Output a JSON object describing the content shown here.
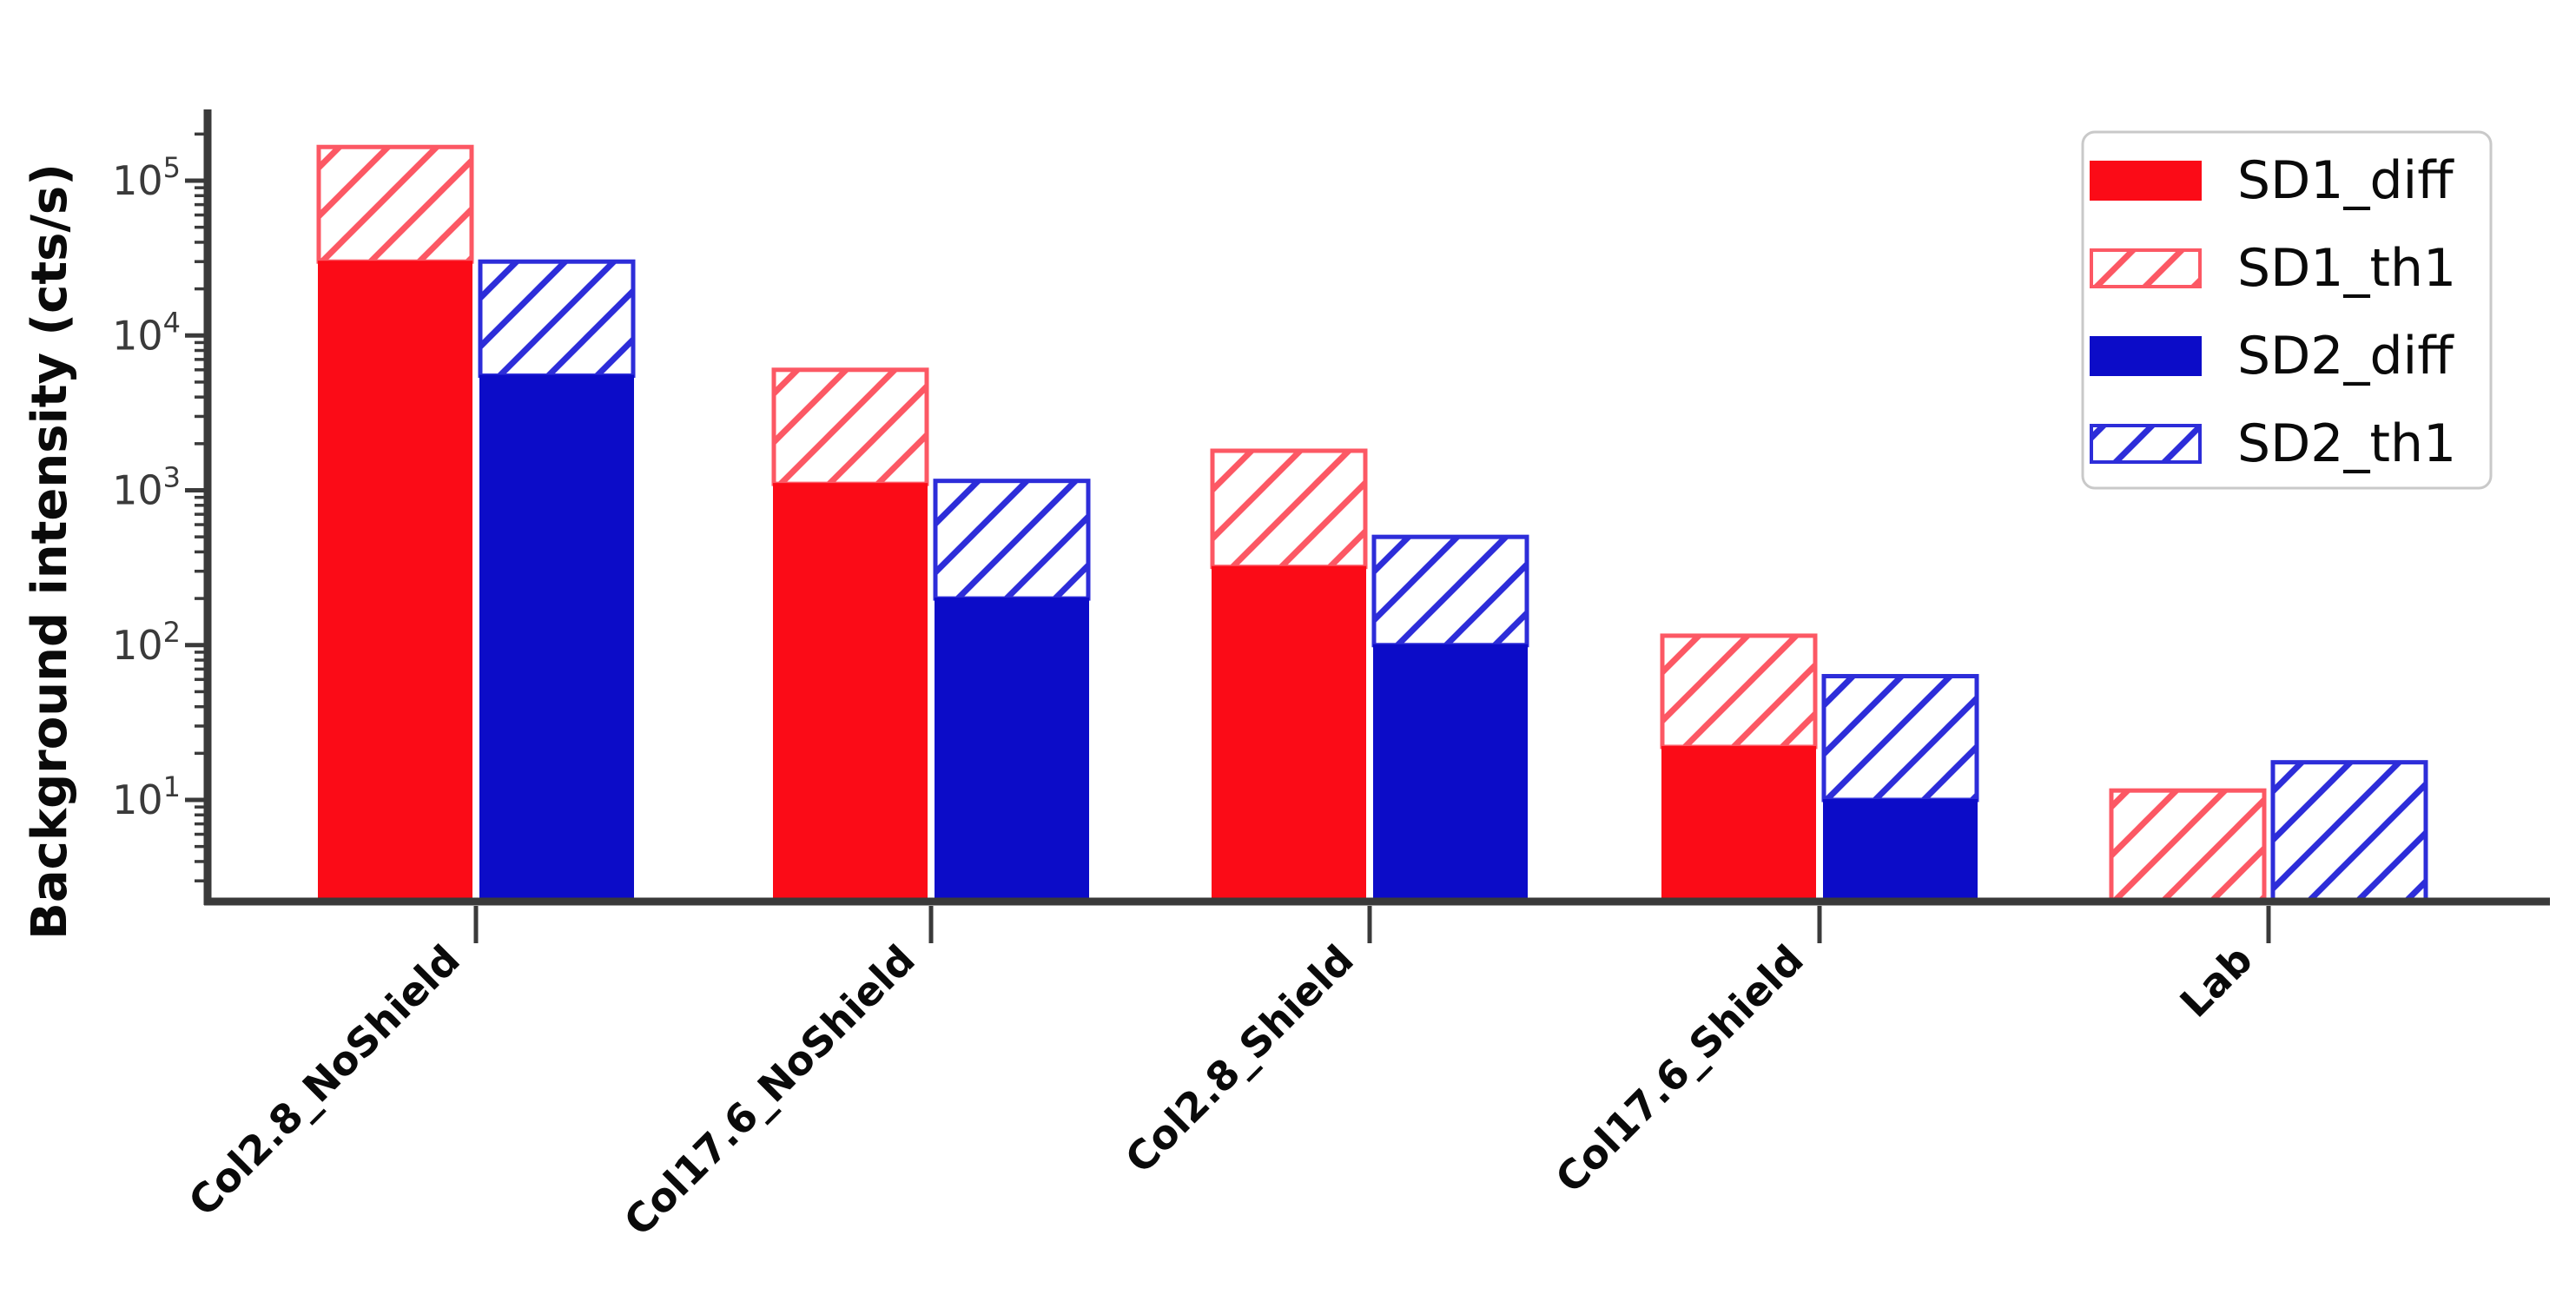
{
  "figure": {
    "background": "#ffffff"
  },
  "chart_data": {
    "type": "bar",
    "yscale": "log",
    "title": "",
    "xlabel": "",
    "ylabel": "Background intensity (cts/s)",
    "categories": [
      "Col2.8_NoShield",
      "Col17.6_NoShield",
      "Col2.8_Shield",
      "Col17.6_Shield",
      "Lab"
    ],
    "ylim": [
      2.2,
      310000
    ],
    "ytick_exponents": [
      1,
      2,
      3,
      4,
      5
    ],
    "grid": false,
    "legend_position": "upper right",
    "stack_note": "th1 series values are the bar TOP levels (diff solid bar is drawn in front, hatched th1 extends above it)",
    "series": [
      {
        "name": "SD1_diff",
        "style": "solid",
        "color_key": "sd1",
        "values": [
          30000,
          1100,
          320,
          22,
          null
        ]
      },
      {
        "name": "SD1_th1",
        "style": "hatched",
        "color_key": "sd1",
        "values": [
          165000,
          6000,
          1800,
          115,
          11.5
        ]
      },
      {
        "name": "SD2_diff",
        "style": "solid",
        "color_key": "sd2",
        "values": [
          5500,
          200,
          100,
          10,
          null
        ]
      },
      {
        "name": "SD2_th1",
        "style": "hatched",
        "color_key": "sd2",
        "values": [
          30000,
          1150,
          500,
          63,
          17.5
        ]
      }
    ]
  },
  "legend": {
    "items": [
      {
        "label": "SD1_diff",
        "style": "solid",
        "color_key": "sd1"
      },
      {
        "label": "SD1_th1",
        "style": "hatched",
        "color_key": "sd1"
      },
      {
        "label": "SD2_diff",
        "style": "solid",
        "color_key": "sd2"
      },
      {
        "label": "SD2_th1",
        "style": "hatched",
        "color_key": "sd2"
      }
    ]
  },
  "colors": {
    "sd1_solid": "#fb0b17",
    "sd1_hatch": "#fc5864",
    "sd2_solid": "#0c0cc8",
    "sd2_hatch": "#2d2dd9",
    "axis": "#3a3a3a",
    "tick_text": "#3a3a3a",
    "text": "#0a0a0a",
    "legend_border": "#c9c9c9"
  }
}
